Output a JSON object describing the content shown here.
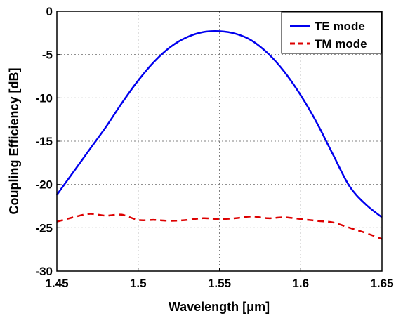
{
  "chart_data": {
    "type": "line",
    "title": "",
    "xlabel": "Wavelength [μm]",
    "ylabel": "Coupling Efficiency [dB]",
    "xlim": [
      1.45,
      1.65
    ],
    "ylim": [
      -30,
      0
    ],
    "x_ticks": [
      "1.45",
      "1.5",
      "1.55",
      "1.6",
      "1.65"
    ],
    "y_ticks": [
      "0",
      "-5",
      "-10",
      "-15",
      "-20",
      "-25",
      "-30"
    ],
    "grid": true,
    "legend_position": "top-right",
    "series": [
      {
        "name": "TE mode",
        "color": "#0000ee",
        "style": "solid",
        "x": [
          1.45,
          1.46,
          1.47,
          1.48,
          1.49,
          1.5,
          1.51,
          1.52,
          1.53,
          1.54,
          1.55,
          1.56,
          1.57,
          1.58,
          1.59,
          1.6,
          1.61,
          1.62,
          1.63,
          1.64,
          1.65
        ],
        "y": [
          -21.2,
          -18.6,
          -16.0,
          -13.4,
          -10.6,
          -8.0,
          -5.8,
          -4.1,
          -3.0,
          -2.4,
          -2.3,
          -2.6,
          -3.4,
          -4.9,
          -7.0,
          -9.7,
          -12.9,
          -16.6,
          -20.2,
          -22.3,
          -23.8
        ]
      },
      {
        "name": "TM mode",
        "color": "#dd0000",
        "style": "dashed",
        "x": [
          1.45,
          1.46,
          1.47,
          1.48,
          1.49,
          1.5,
          1.51,
          1.52,
          1.53,
          1.54,
          1.55,
          1.56,
          1.57,
          1.58,
          1.59,
          1.6,
          1.61,
          1.62,
          1.63,
          1.64,
          1.65
        ],
        "y": [
          -24.3,
          -23.8,
          -23.4,
          -23.6,
          -23.5,
          -24.1,
          -24.1,
          -24.2,
          -24.1,
          -23.9,
          -24.0,
          -23.9,
          -23.7,
          -23.9,
          -23.8,
          -24.0,
          -24.2,
          -24.4,
          -25.0,
          -25.6,
          -26.3
        ]
      }
    ]
  }
}
